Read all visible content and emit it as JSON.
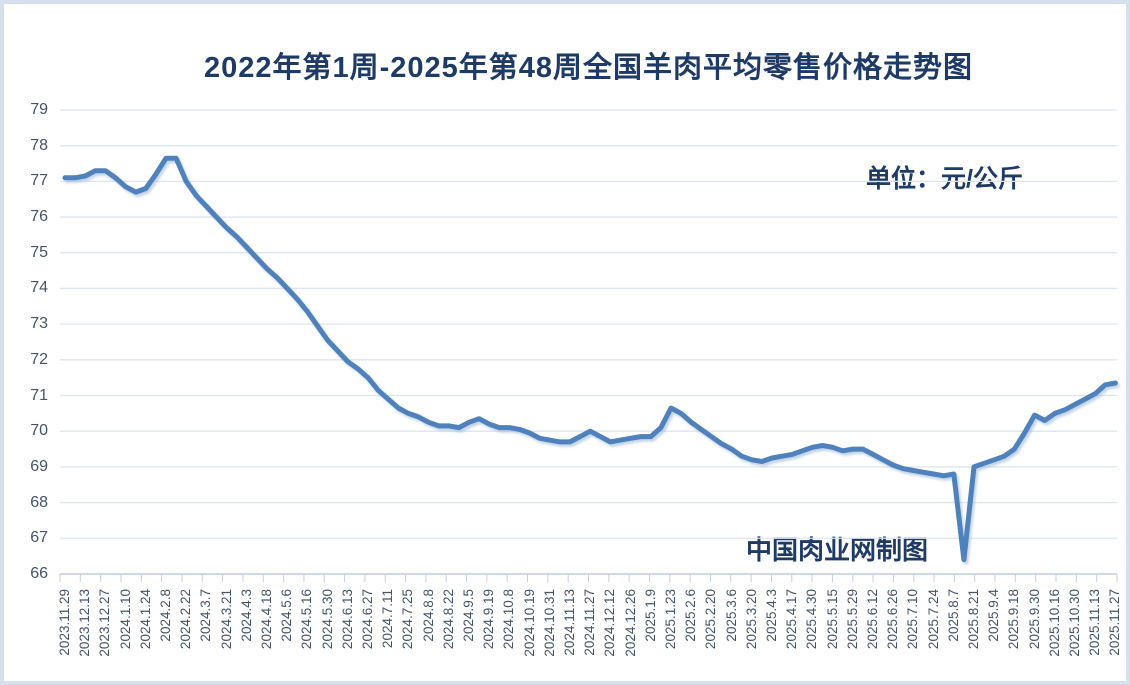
{
  "page": {
    "background": "#ffffff",
    "frame_border_color": "#d6e0ec"
  },
  "header": {
    "title": "2022年第1周-2025年第48周全国羊肉平均零售价格走势图",
    "title_color": "#1e3a66"
  },
  "annotations": {
    "unit_label": "单位：元/公斤",
    "watermark": "中国肉业网制图"
  },
  "chart_data": {
    "type": "line",
    "title": "2022年第1周-2025年第48周全国羊肉平均零售价格走势图",
    "unit": "元/公斤",
    "ylim": [
      66,
      79
    ],
    "y_ticks": [
      66,
      67,
      68,
      69,
      70,
      71,
      72,
      73,
      74,
      75,
      76,
      77,
      78,
      79
    ],
    "grid": true,
    "legend_position": "none",
    "x_tick_labels": [
      "2023.11.29",
      "2023.12.13",
      "2023.12.27",
      "2024.1.10",
      "2024.1.24",
      "2024.2.8",
      "2024.2.22",
      "2024.3.7",
      "2024.3.21",
      "2024.4.3",
      "2024.4.18",
      "2024.5.6",
      "2024.5.16",
      "2024.5.30",
      "2024.6.13",
      "2024.6.27",
      "2024.7.11",
      "2024.7.25",
      "2024.8.8",
      "2024.8.22",
      "2024.9.5",
      "2024.9.19",
      "2024.10.8",
      "2024.10.19",
      "2024.10.31",
      "2024.11.13",
      "2024.11.27",
      "2024.12.12",
      "2024.12.26",
      "2025.1.9",
      "2025.1.23",
      "2025.2.6",
      "2025.2.20",
      "2025.3.6",
      "2025.3.20",
      "2025.4.3",
      "2025.4.17",
      "2025.4.30",
      "2025.5.15",
      "2025.5.29",
      "2025.6.12",
      "2025.6.26",
      "2025.7.10",
      "2025.7.24",
      "2025.8.7",
      "2025.8.21",
      "2025.9.4",
      "2025.9.18",
      "2025.9.30",
      "2025.10.16",
      "2025.10.30",
      "2025.11.13",
      "2025.11.27"
    ],
    "points_per_labelled_tick": 2,
    "values_weekly": [
      77.1,
      77.1,
      77.15,
      77.3,
      77.3,
      77.1,
      76.85,
      76.7,
      76.8,
      77.2,
      77.65,
      77.65,
      77.0,
      76.6,
      76.3,
      76.0,
      75.7,
      75.45,
      75.15,
      74.85,
      74.55,
      74.3,
      74.0,
      73.7,
      73.35,
      72.95,
      72.55,
      72.25,
      71.95,
      71.75,
      71.5,
      71.15,
      70.9,
      70.65,
      70.5,
      70.4,
      70.25,
      70.15,
      70.15,
      70.1,
      70.25,
      70.35,
      70.2,
      70.1,
      70.1,
      70.05,
      69.95,
      69.8,
      69.75,
      69.7,
      69.7,
      69.85,
      70.0,
      69.85,
      69.7,
      69.75,
      69.8,
      69.85,
      69.85,
      70.1,
      70.65,
      70.5,
      70.25,
      70.05,
      69.85,
      69.65,
      69.5,
      69.3,
      69.2,
      69.15,
      69.25,
      69.3,
      69.35,
      69.45,
      69.55,
      69.6,
      69.55,
      69.45,
      69.5,
      69.5,
      69.35,
      69.2,
      69.05,
      68.95,
      68.9,
      68.85,
      68.8,
      68.75,
      68.8,
      66.4,
      69.0,
      69.1,
      69.2,
      69.3,
      69.5,
      69.95,
      70.45,
      70.3,
      70.5,
      70.6,
      70.75,
      70.9,
      71.05,
      71.3,
      71.35
    ],
    "line_color": "#4f81bd",
    "axis_label_color": "#44546a",
    "grid_color": "#dce6ef",
    "axis_line_color": "#c3cfdd"
  }
}
